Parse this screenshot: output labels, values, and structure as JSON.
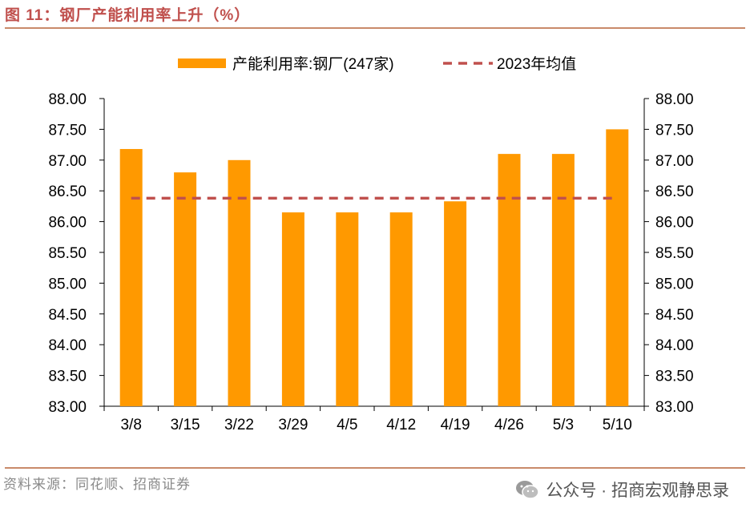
{
  "figure_title": "图 11：钢厂产能利用率上升（%）",
  "source": "资料来源：同花顺、招商证券",
  "watermark": "公众号 · 招商宏观静思录",
  "colors": {
    "bar": "#ff9900",
    "avg_line": "#c0504d",
    "title": "#c0504d"
  },
  "chart_data": {
    "type": "bar",
    "categories": [
      "3/8",
      "3/15",
      "3/22",
      "3/29",
      "4/5",
      "4/12",
      "4/19",
      "4/26",
      "5/3",
      "5/10"
    ],
    "series": [
      {
        "name": "产能利用率:钢厂(247家)",
        "kind": "bar",
        "values": [
          87.18,
          86.8,
          87.0,
          86.15,
          86.15,
          86.15,
          86.33,
          87.1,
          87.1,
          87.5
        ]
      },
      {
        "name": "2023年均值",
        "kind": "dashed-line",
        "value": 86.38
      }
    ],
    "ylim": [
      83.0,
      88.0
    ],
    "yticks": [
      "83.00",
      "83.50",
      "84.00",
      "84.50",
      "85.00",
      "85.50",
      "86.00",
      "86.50",
      "87.00",
      "87.50",
      "88.00"
    ],
    "secondary_yticks": [
      "83.00",
      "83.50",
      "84.00",
      "84.50",
      "85.00",
      "85.50",
      "86.00",
      "86.50",
      "87.00",
      "87.50",
      "88.00"
    ],
    "legend_position": "top-center",
    "grid": false
  }
}
